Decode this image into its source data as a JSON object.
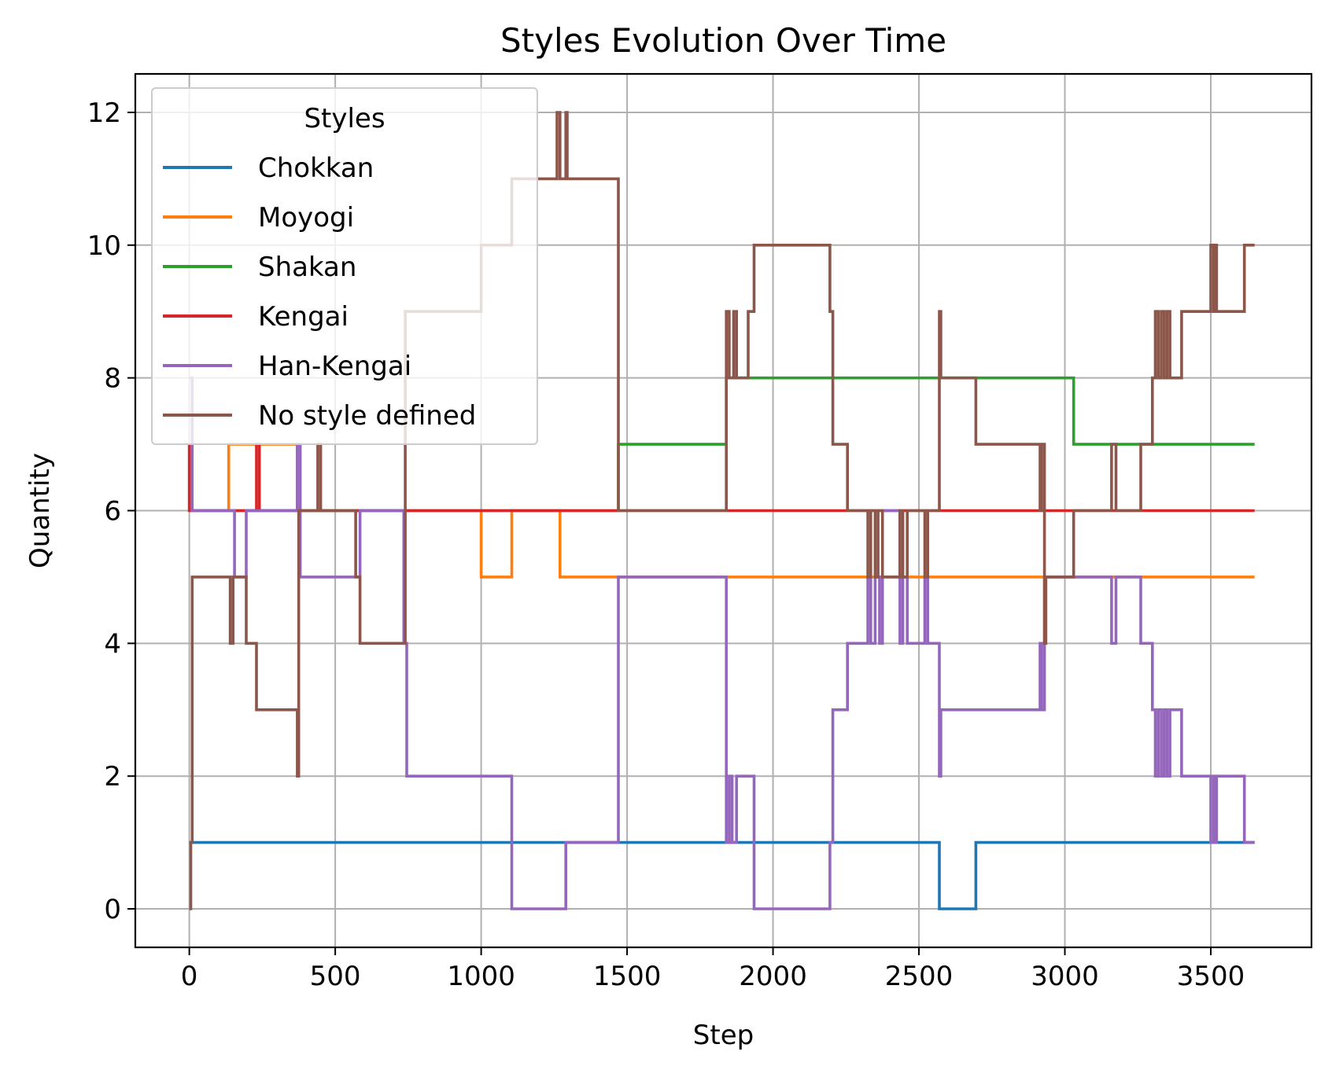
{
  "chart_data": {
    "type": "line",
    "step": true,
    "title": "Styles Evolution Over Time",
    "xlabel": "Step",
    "ylabel": "Quantity",
    "xlim": [
      -185,
      3845
    ],
    "ylim": [
      -0.58,
      12.58
    ],
    "xticks": [
      0,
      500,
      1000,
      1500,
      2000,
      2500,
      3000,
      3500
    ],
    "yticks": [
      0,
      2,
      4,
      6,
      8,
      10,
      12
    ],
    "grid": true,
    "legend": {
      "title": "Styles",
      "position": "upper-left"
    },
    "series": [
      {
        "name": "Chokkan",
        "color": "#1f77b4",
        "points": [
          [
            0,
            1
          ],
          [
            2570,
            1
          ],
          [
            2570,
            0
          ],
          [
            2695,
            0
          ],
          [
            2695,
            1
          ],
          [
            3650,
            1
          ]
        ]
      },
      {
        "name": "Moyogi",
        "color": "#ff7f0e",
        "points": [
          [
            0,
            6
          ],
          [
            135,
            6
          ],
          [
            135,
            7
          ],
          [
            370,
            7
          ],
          [
            370,
            6
          ],
          [
            1000,
            6
          ],
          [
            1000,
            5
          ],
          [
            1105,
            5
          ],
          [
            1105,
            6
          ],
          [
            1270,
            6
          ],
          [
            1270,
            5
          ],
          [
            3650,
            5
          ]
        ]
      },
      {
        "name": "Shakan",
        "color": "#2ca02c",
        "points": [
          [
            0,
            6
          ],
          [
            1470,
            6
          ],
          [
            1470,
            7
          ],
          [
            1840,
            7
          ],
          [
            1840,
            8
          ],
          [
            3030,
            8
          ],
          [
            3030,
            7
          ],
          [
            3650,
            7
          ]
        ]
      },
      {
        "name": "Kengai",
        "color": "#d62728",
        "points": [
          [
            0,
            7
          ],
          [
            0,
            6
          ],
          [
            230,
            6
          ],
          [
            230,
            7
          ],
          [
            240,
            7
          ],
          [
            240,
            6
          ],
          [
            3650,
            6
          ]
        ]
      },
      {
        "name": "Han-Kengai",
        "color": "#9467bd",
        "points": [
          [
            0,
            8
          ],
          [
            10,
            8
          ],
          [
            10,
            6
          ],
          [
            155,
            6
          ],
          [
            155,
            5
          ],
          [
            195,
            5
          ],
          [
            195,
            6
          ],
          [
            370,
            6
          ],
          [
            370,
            7
          ],
          [
            380,
            7
          ],
          [
            380,
            5
          ],
          [
            585,
            5
          ],
          [
            585,
            6
          ],
          [
            735,
            6
          ],
          [
            735,
            4
          ],
          [
            745,
            4
          ],
          [
            745,
            2
          ],
          [
            1105,
            2
          ],
          [
            1105,
            0
          ],
          [
            1290,
            0
          ],
          [
            1290,
            1
          ],
          [
            1470,
            1
          ],
          [
            1470,
            5
          ],
          [
            1840,
            5
          ],
          [
            1840,
            1
          ],
          [
            1850,
            1
          ],
          [
            1850,
            2
          ],
          [
            1860,
            2
          ],
          [
            1860,
            1
          ],
          [
            1875,
            1
          ],
          [
            1875,
            2
          ],
          [
            1935,
            2
          ],
          [
            1935,
            0
          ],
          [
            2195,
            0
          ],
          [
            2195,
            1
          ],
          [
            2205,
            1
          ],
          [
            2205,
            3
          ],
          [
            2255,
            3
          ],
          [
            2255,
            4
          ],
          [
            2325,
            4
          ],
          [
            2325,
            5
          ],
          [
            2335,
            5
          ],
          [
            2335,
            4
          ],
          [
            2350,
            4
          ],
          [
            2350,
            5
          ],
          [
            2365,
            5
          ],
          [
            2365,
            4
          ],
          [
            2375,
            4
          ],
          [
            2375,
            6
          ],
          [
            2435,
            6
          ],
          [
            2435,
            4
          ],
          [
            2445,
            4
          ],
          [
            2445,
            5
          ],
          [
            2460,
            5
          ],
          [
            2460,
            4
          ],
          [
            2520,
            4
          ],
          [
            2520,
            5
          ],
          [
            2530,
            5
          ],
          [
            2530,
            4
          ],
          [
            2570,
            4
          ],
          [
            2570,
            2
          ],
          [
            2575,
            2
          ],
          [
            2575,
            3
          ],
          [
            2915,
            3
          ],
          [
            2915,
            4
          ],
          [
            2920,
            4
          ],
          [
            2920,
            3
          ],
          [
            2930,
            3
          ],
          [
            2930,
            5
          ],
          [
            3160,
            5
          ],
          [
            3160,
            4
          ],
          [
            3175,
            4
          ],
          [
            3175,
            5
          ],
          [
            3260,
            5
          ],
          [
            3260,
            4
          ],
          [
            3300,
            4
          ],
          [
            3300,
            3
          ],
          [
            3310,
            3
          ],
          [
            3310,
            2
          ],
          [
            3320,
            2
          ],
          [
            3320,
            3
          ],
          [
            3330,
            3
          ],
          [
            3330,
            2
          ],
          [
            3340,
            2
          ],
          [
            3340,
            3
          ],
          [
            3350,
            3
          ],
          [
            3350,
            2
          ],
          [
            3360,
            2
          ],
          [
            3360,
            3
          ],
          [
            3400,
            3
          ],
          [
            3400,
            2
          ],
          [
            3500,
            2
          ],
          [
            3500,
            1
          ],
          [
            3510,
            1
          ],
          [
            3510,
            2
          ],
          [
            3515,
            2
          ],
          [
            3515,
            1
          ],
          [
            3520,
            1
          ],
          [
            3520,
            2
          ],
          [
            3615,
            2
          ],
          [
            3615,
            1
          ],
          [
            3650,
            1
          ]
        ]
      },
      {
        "name": "No style defined",
        "color": "#8c564b",
        "points": [
          [
            0,
            0
          ],
          [
            5,
            0
          ],
          [
            5,
            1
          ],
          [
            10,
            1
          ],
          [
            10,
            5
          ],
          [
            140,
            5
          ],
          [
            140,
            4
          ],
          [
            150,
            4
          ],
          [
            150,
            5
          ],
          [
            195,
            5
          ],
          [
            195,
            4
          ],
          [
            230,
            4
          ],
          [
            230,
            3
          ],
          [
            370,
            3
          ],
          [
            370,
            2
          ],
          [
            375,
            2
          ],
          [
            375,
            6
          ],
          [
            440,
            6
          ],
          [
            440,
            7
          ],
          [
            450,
            7
          ],
          [
            450,
            6
          ],
          [
            570,
            6
          ],
          [
            570,
            5
          ],
          [
            585,
            5
          ],
          [
            585,
            4
          ],
          [
            740,
            4
          ],
          [
            740,
            9
          ],
          [
            1000,
            9
          ],
          [
            1000,
            10
          ],
          [
            1105,
            10
          ],
          [
            1105,
            11
          ],
          [
            1260,
            11
          ],
          [
            1260,
            12
          ],
          [
            1270,
            12
          ],
          [
            1270,
            11
          ],
          [
            1290,
            11
          ],
          [
            1290,
            12
          ],
          [
            1295,
            12
          ],
          [
            1295,
            11
          ],
          [
            1470,
            11
          ],
          [
            1470,
            6
          ],
          [
            1840,
            6
          ],
          [
            1840,
            9
          ],
          [
            1850,
            9
          ],
          [
            1850,
            8
          ],
          [
            1865,
            8
          ],
          [
            1865,
            9
          ],
          [
            1875,
            9
          ],
          [
            1875,
            8
          ],
          [
            1915,
            8
          ],
          [
            1915,
            9
          ],
          [
            1935,
            9
          ],
          [
            1935,
            10
          ],
          [
            2195,
            10
          ],
          [
            2195,
            9
          ],
          [
            2205,
            9
          ],
          [
            2205,
            7
          ],
          [
            2255,
            7
          ],
          [
            2255,
            6
          ],
          [
            2325,
            6
          ],
          [
            2325,
            5
          ],
          [
            2335,
            5
          ],
          [
            2335,
            6
          ],
          [
            2350,
            6
          ],
          [
            2350,
            5
          ],
          [
            2360,
            5
          ],
          [
            2360,
            6
          ],
          [
            2375,
            6
          ],
          [
            2375,
            5
          ],
          [
            2435,
            5
          ],
          [
            2435,
            6
          ],
          [
            2445,
            6
          ],
          [
            2445,
            5
          ],
          [
            2460,
            5
          ],
          [
            2460,
            6
          ],
          [
            2520,
            6
          ],
          [
            2520,
            5
          ],
          [
            2530,
            5
          ],
          [
            2530,
            6
          ],
          [
            2570,
            6
          ],
          [
            2570,
            9
          ],
          [
            2575,
            9
          ],
          [
            2575,
            8
          ],
          [
            2695,
            8
          ],
          [
            2695,
            7
          ],
          [
            2915,
            7
          ],
          [
            2915,
            6
          ],
          [
            2920,
            6
          ],
          [
            2920,
            7
          ],
          [
            2930,
            7
          ],
          [
            2930,
            4
          ],
          [
            2935,
            4
          ],
          [
            2935,
            5
          ],
          [
            3030,
            5
          ],
          [
            3030,
            6
          ],
          [
            3160,
            6
          ],
          [
            3160,
            7
          ],
          [
            3175,
            7
          ],
          [
            3175,
            6
          ],
          [
            3260,
            6
          ],
          [
            3260,
            7
          ],
          [
            3300,
            7
          ],
          [
            3300,
            8
          ],
          [
            3310,
            8
          ],
          [
            3310,
            9
          ],
          [
            3320,
            9
          ],
          [
            3320,
            8
          ],
          [
            3330,
            8
          ],
          [
            3330,
            9
          ],
          [
            3340,
            9
          ],
          [
            3340,
            8
          ],
          [
            3350,
            8
          ],
          [
            3350,
            9
          ],
          [
            3360,
            9
          ],
          [
            3360,
            8
          ],
          [
            3400,
            8
          ],
          [
            3400,
            9
          ],
          [
            3500,
            9
          ],
          [
            3500,
            10
          ],
          [
            3510,
            10
          ],
          [
            3510,
            9
          ],
          [
            3515,
            9
          ],
          [
            3515,
            10
          ],
          [
            3520,
            10
          ],
          [
            3520,
            9
          ],
          [
            3615,
            9
          ],
          [
            3615,
            10
          ],
          [
            3650,
            10
          ]
        ]
      }
    ]
  }
}
